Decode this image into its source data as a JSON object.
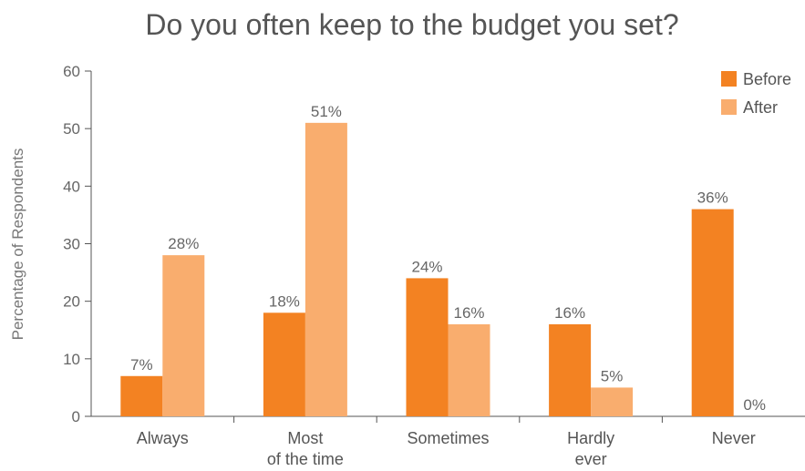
{
  "chart_data": {
    "type": "bar",
    "title": "Do you often keep to the budget you set?",
    "ylabel": "Percentage of Respondents",
    "xlabel": "",
    "ylim": [
      0,
      60
    ],
    "yticks": [
      0,
      10,
      20,
      30,
      40,
      50,
      60
    ],
    "grid": false,
    "legend_position": "top-right",
    "categories": [
      [
        "Always"
      ],
      [
        "Most",
        "of the time"
      ],
      [
        "Sometimes"
      ],
      [
        "Hardly",
        "ever"
      ],
      [
        "Never"
      ]
    ],
    "series": [
      {
        "name": "Before",
        "color": "#f38222",
        "values": [
          7,
          18,
          24,
          16,
          36
        ],
        "labels": [
          "7%",
          "18%",
          "24%",
          "16%",
          "36%"
        ]
      },
      {
        "name": "After",
        "color": "#f9ad6e",
        "values": [
          28,
          51,
          16,
          5,
          0
        ],
        "labels": [
          "28%",
          "51%",
          "16%",
          "5%",
          "0%"
        ]
      }
    ]
  }
}
